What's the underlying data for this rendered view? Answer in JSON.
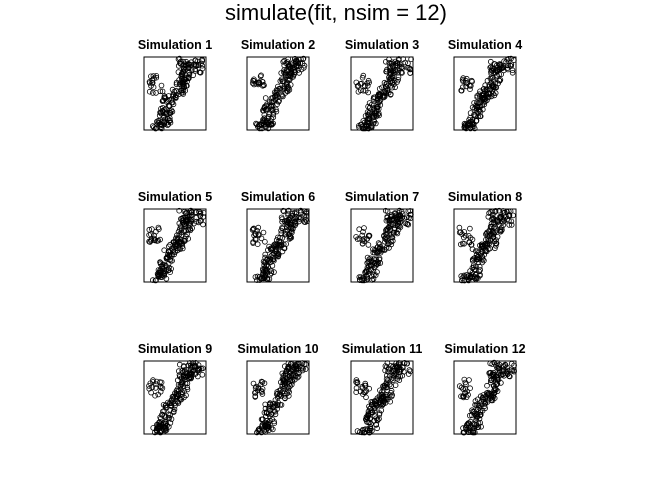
{
  "chart_data": {
    "type": "scatter",
    "title": "simulate(fit, nsim = 12)",
    "panels": [
      {
        "title": "Simulation 1"
      },
      {
        "title": "Simulation 2"
      },
      {
        "title": "Simulation 3"
      },
      {
        "title": "Simulation 4"
      },
      {
        "title": "Simulation 5"
      },
      {
        "title": "Simulation 6"
      },
      {
        "title": "Simulation 7"
      },
      {
        "title": "Simulation 8"
      },
      {
        "title": "Simulation 9"
      },
      {
        "title": "Simulation 10"
      },
      {
        "title": "Simulation 11"
      },
      {
        "title": "Simulation 12"
      }
    ],
    "point_shape": "open-circle",
    "axes_visible": false,
    "grid": false,
    "color": "#000000"
  }
}
